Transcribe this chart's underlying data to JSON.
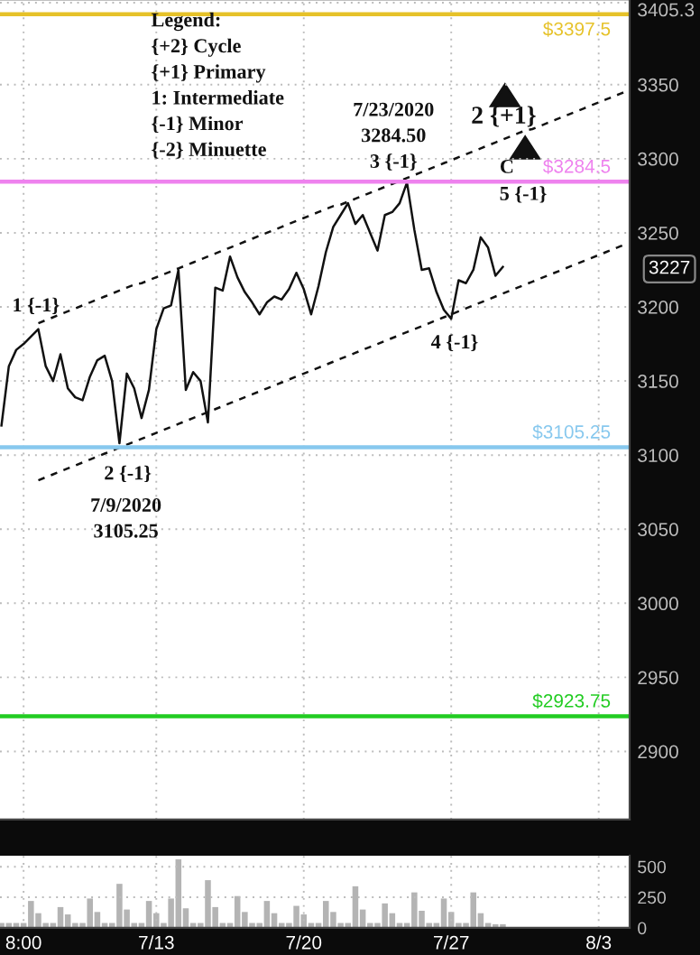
{
  "chart_data": [
    {
      "type": "line",
      "ylim": [
        2854,
        3407
      ],
      "categories": [
        null,
        null,
        null,
        null,
        null,
        null,
        null,
        null,
        null,
        null,
        null,
        null,
        null,
        null,
        null,
        null,
        null,
        null,
        null,
        null,
        null,
        null,
        null,
        null,
        null,
        null,
        null,
        null,
        null,
        null,
        null,
        null,
        null,
        null,
        null,
        null,
        null,
        null,
        null,
        null,
        null,
        null,
        null,
        null,
        null,
        null,
        null,
        null,
        null,
        null,
        null,
        null,
        null,
        null,
        null,
        null,
        null,
        null,
        null,
        null,
        null,
        null,
        null,
        null,
        null,
        null,
        null,
        null,
        null,
        null,
        null,
        null,
        null,
        null,
        null,
        null,
        null,
        null,
        null,
        null,
        null,
        null,
        null,
        null,
        null,
        null
      ],
      "yticks": [
        2900,
        2950,
        3000,
        3050,
        3100,
        3150,
        3200,
        3250,
        3300,
        3350,
        3405.3
      ],
      "tick_labels": "y",
      "grid": true,
      "series": [
        {
          "color": "#111111",
          "line_style": "solid",
          "values": [
            3120,
            3160,
            3171,
            3175,
            3180,
            3185,
            3160,
            3150,
            3168,
            3145,
            3139,
            3137,
            3153,
            3164,
            3167,
            3150,
            3108,
            3155,
            3145,
            3125,
            3144,
            3185,
            3199,
            3201,
            3225,
            3144,
            3156,
            3150,
            3122,
            3213,
            3211,
            3234,
            3220,
            3210,
            3203,
            3195,
            3203,
            3207,
            3205,
            3212,
            3223,
            3212,
            3195,
            3214,
            3237,
            3254,
            3262,
            3270,
            3256,
            3262,
            3250,
            3238,
            3262,
            3264,
            3270,
            3284,
            3252,
            3225,
            3226,
            3210,
            3198,
            3192,
            3218,
            3216,
            3225,
            3247,
            3240,
            3221,
            3227,
            null,
            null,
            null,
            null,
            null,
            null,
            null,
            null,
            null,
            null,
            null,
            null,
            null,
            null,
            null,
            null,
            null
          ]
        },
        {
          "color": "#111111",
          "line_style": "dashed",
          "values": [
            null,
            null,
            null,
            null,
            null,
            3189,
            3191,
            3193,
            3195,
            3197,
            3199,
            3201,
            3203,
            3205,
            3207,
            3209,
            3211,
            3213,
            3215,
            3216,
            3218,
            3220,
            3222,
            3224,
            3226,
            3228,
            3230,
            3232,
            3234,
            3236,
            3238,
            3240,
            3242,
            3244,
            3246,
            3248,
            3250,
            3252,
            3254,
            3256,
            3258,
            3260,
            3262,
            3264,
            3266,
            3268,
            3269,
            3271,
            3273,
            3275,
            3277,
            3279,
            3281,
            3283,
            3285,
            3287,
            3289,
            3291,
            3293,
            3295,
            3297,
            3299,
            3301,
            3303,
            3305,
            3307,
            3309,
            3311,
            3313,
            3315,
            3317,
            3319,
            3320,
            3322,
            3324,
            3326,
            3328,
            3330,
            3332,
            3334,
            3336,
            3338,
            3340,
            3342,
            3344,
            3346
          ]
        },
        {
          "color": "#111111",
          "line_style": "dashed",
          "values": [
            null,
            null,
            null,
            null,
            null,
            3083,
            3085,
            3087,
            3089,
            3091,
            3093,
            3095,
            3097,
            3099,
            3101,
            3103,
            3105,
            3107,
            3109,
            3111,
            3113,
            3115,
            3117,
            3119,
            3121,
            3123,
            3125,
            3127,
            3129,
            3131,
            3133,
            3135,
            3137,
            3139,
            3141,
            3143,
            3145,
            3147,
            3149,
            3151,
            3153,
            3155,
            3157,
            3159,
            3161,
            3163,
            3165,
            3167,
            3169,
            3171,
            3173,
            3175,
            3177,
            3179,
            3181,
            3183,
            3185,
            3187,
            3189,
            3191,
            3193,
            3195,
            3197,
            3199,
            3201,
            3203,
            3205,
            3207,
            3209,
            3211,
            3213,
            3215,
            3217,
            3219,
            3221,
            3223,
            3225,
            3227,
            3229,
            3231,
            3233,
            3235,
            3237,
            3239,
            3241,
            3243
          ]
        }
      ],
      "ref_lines": [
        {
          "axis": "y",
          "value": 3397.5,
          "label": "$3397.5",
          "color": "#e6c229"
        },
        {
          "axis": "y",
          "value": 3284.5,
          "label": "$3284.5",
          "color": "#ee82ee"
        },
        {
          "axis": "y",
          "value": 3105.25,
          "label": "$3105.25",
          "color": "#87c8ee"
        },
        {
          "axis": "y",
          "value": 2923.75,
          "label": "$2923.75",
          "color": "#22cc22"
        }
      ],
      "annotations": [
        "Legend:\n{+2} Cycle\n{+1} Primary\n1: Intermediate\n{-1} Minor\n{-2} Minuette",
        "7/23/2020\n3284.50\n3 {-1}",
        "1 {-1}",
        "2 {-1}",
        "7/9/2020\n3105.25",
        "4 {-1}",
        "2 {+1}",
        "C",
        "5 {-1}",
        "3227"
      ]
    },
    {
      "type": "bar",
      "ylim": [
        0,
        590
      ],
      "yticks": [
        0,
        250,
        500
      ],
      "categories": [
        null,
        null,
        null,
        "8:00",
        null,
        null,
        null,
        null,
        null,
        null,
        null,
        null,
        null,
        null,
        null,
        null,
        null,
        null,
        null,
        null,
        null,
        "7/13",
        null,
        null,
        null,
        null,
        null,
        null,
        null,
        null,
        null,
        null,
        null,
        null,
        null,
        null,
        null,
        null,
        null,
        null,
        null,
        "7/20",
        null,
        null,
        null,
        null,
        null,
        null,
        null,
        null,
        null,
        null,
        null,
        null,
        null,
        null,
        null,
        null,
        null,
        null,
        null,
        "7/27",
        null,
        null,
        null,
        null,
        null,
        null,
        null,
        null,
        null,
        null,
        null,
        null,
        null,
        null,
        null,
        null,
        null,
        null,
        null,
        "8/3",
        null,
        null,
        null,
        null
      ],
      "grid": true,
      "color": "#b4b4b4",
      "values": [
        40,
        40,
        40,
        40,
        220,
        120,
        40,
        40,
        170,
        110,
        40,
        40,
        240,
        130,
        40,
        40,
        360,
        150,
        40,
        40,
        220,
        120,
        40,
        240,
        560,
        160,
        40,
        40,
        390,
        170,
        40,
        40,
        260,
        130,
        40,
        40,
        220,
        120,
        40,
        40,
        180,
        110,
        40,
        40,
        220,
        130,
        40,
        40,
        340,
        150,
        40,
        40,
        200,
        120,
        40,
        40,
        290,
        140,
        40,
        40,
        240,
        130,
        40,
        40,
        290,
        120,
        40,
        30,
        30,
        null,
        null,
        null,
        null,
        null,
        null,
        null,
        null,
        null,
        null,
        null,
        null,
        null,
        null,
        null,
        null,
        null
      ]
    }
  ]
}
